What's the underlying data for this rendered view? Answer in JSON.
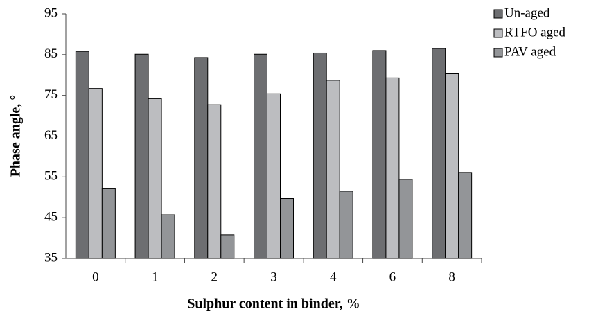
{
  "chart_data": {
    "type": "bar",
    "xlabel": "Sulphur content in binder, %",
    "ylabel": "Phase angle, °",
    "categories": [
      "0",
      "1",
      "2",
      "3",
      "4",
      "6",
      "8"
    ],
    "series": [
      {
        "name": "Un-aged",
        "color": "#6d6e71",
        "values": [
          85.8,
          85.1,
          84.3,
          85.1,
          85.4,
          86.0,
          86.5
        ]
      },
      {
        "name": "RTFO aged",
        "color": "#bcbdc0",
        "values": [
          76.7,
          74.2,
          72.7,
          75.4,
          78.7,
          79.3,
          80.3
        ]
      },
      {
        "name": "PAV aged",
        "color": "#939598",
        "values": [
          52.1,
          45.7,
          40.8,
          49.7,
          51.5,
          54.4,
          56.1
        ]
      }
    ],
    "ylim": [
      35,
      95
    ],
    "yticks": [
      35,
      45,
      55,
      65,
      75,
      85,
      95
    ],
    "legend": "right"
  }
}
